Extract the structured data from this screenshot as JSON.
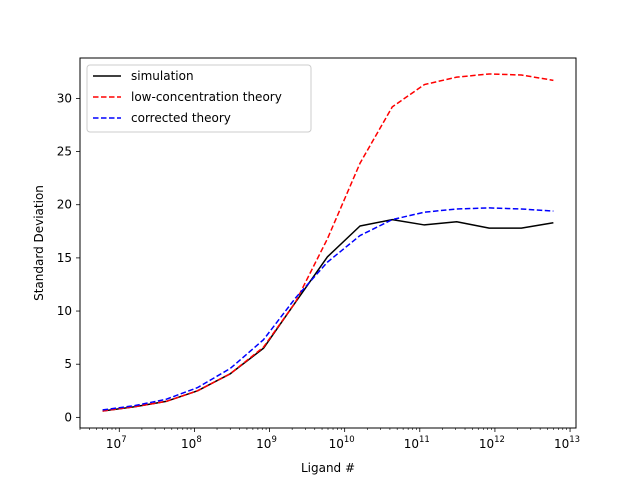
{
  "chart_data": {
    "type": "line",
    "xlabel": "Ligand #",
    "ylabel": "Standard Deviation",
    "xscale": "log",
    "xlim": [
      3000000.0,
      12000000000000.0
    ],
    "ylim": [
      -1.0,
      33.8
    ],
    "x_ticks": [
      {
        "value": 10000000.0,
        "base": "10",
        "exp": "7"
      },
      {
        "value": 100000000.0,
        "base": "10",
        "exp": "8"
      },
      {
        "value": 1000000000.0,
        "base": "10",
        "exp": "9"
      },
      {
        "value": 10000000000.0,
        "base": "10",
        "exp": "10"
      },
      {
        "value": 100000000000.0,
        "base": "10",
        "exp": "11"
      },
      {
        "value": 1000000000000.0,
        "base": "10",
        "exp": "12"
      },
      {
        "value": 10000000000000.0,
        "base": "10",
        "exp": "13"
      }
    ],
    "y_ticks": [
      {
        "value": 0,
        "label": "0"
      },
      {
        "value": 5,
        "label": "5"
      },
      {
        "value": 10,
        "label": "10"
      },
      {
        "value": 15,
        "label": "15"
      },
      {
        "value": 20,
        "label": "20"
      },
      {
        "value": 25,
        "label": "25"
      },
      {
        "value": 30,
        "label": "30"
      }
    ],
    "legend_position": "top-left",
    "grid": false,
    "series": [
      {
        "name": "simulation",
        "color": "#000000",
        "dash": "solid",
        "x": [
          6000000.0,
          16000000.0,
          42000000.0,
          110000000.0,
          300000000.0,
          830000000.0,
          2200000000.0,
          5900000000.0,
          16000000000.0,
          43000000000.0,
          115000000000.0,
          310000000000.0,
          840000000000.0,
          2250000000000.0,
          6000000000000.0
        ],
        "y": [
          0.6,
          1.0,
          1.5,
          2.5,
          4.1,
          6.5,
          10.8,
          15.1,
          18.0,
          18.6,
          18.1,
          18.4,
          17.8,
          17.8,
          18.3
        ]
      },
      {
        "name": "low-concentration theory",
        "color": "#ff0000",
        "dash": "dashed",
        "x": [
          6000000.0,
          16000000.0,
          42000000.0,
          110000000.0,
          300000000.0,
          830000000.0,
          2200000000.0,
          5900000000.0,
          16000000000.0,
          43000000000.0,
          115000000000.0,
          310000000000.0,
          840000000000.0,
          2250000000000.0,
          6000000000000.0
        ],
        "y": [
          0.6,
          1.0,
          1.5,
          2.5,
          4.1,
          6.6,
          10.8,
          16.8,
          23.9,
          29.2,
          31.3,
          32.0,
          32.3,
          32.2,
          31.7
        ]
      },
      {
        "name": "corrected theory",
        "color": "#0000ff",
        "dash": "dashed",
        "x": [
          6000000.0,
          16000000.0,
          42000000.0,
          110000000.0,
          300000000.0,
          830000000.0,
          2200000000.0,
          5900000000.0,
          16000000000.0,
          43000000000.0,
          115000000000.0,
          310000000000.0,
          840000000000.0,
          2250000000000.0,
          6000000000000.0
        ],
        "y": [
          0.7,
          1.1,
          1.7,
          2.8,
          4.6,
          7.3,
          11.2,
          14.6,
          17.1,
          18.6,
          19.3,
          19.6,
          19.7,
          19.6,
          19.4
        ]
      }
    ]
  }
}
